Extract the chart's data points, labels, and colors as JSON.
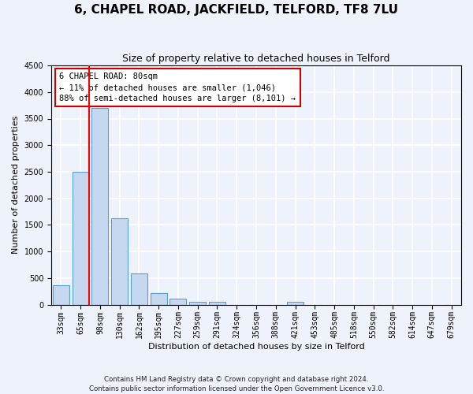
{
  "title": "6, CHAPEL ROAD, JACKFIELD, TELFORD, TF8 7LU",
  "subtitle": "Size of property relative to detached houses in Telford",
  "xlabel": "Distribution of detached houses by size in Telford",
  "ylabel": "Number of detached properties",
  "footnote": "Contains HM Land Registry data © Crown copyright and database right 2024.\nContains public sector information licensed under the Open Government Licence v3.0.",
  "categories": [
    "33sqm",
    "65sqm",
    "98sqm",
    "130sqm",
    "162sqm",
    "195sqm",
    "227sqm",
    "259sqm",
    "291sqm",
    "324sqm",
    "356sqm",
    "388sqm",
    "421sqm",
    "453sqm",
    "485sqm",
    "518sqm",
    "550sqm",
    "582sqm",
    "614sqm",
    "647sqm",
    "679sqm"
  ],
  "values": [
    360,
    2500,
    3700,
    1630,
    590,
    220,
    105,
    60,
    50,
    0,
    0,
    0,
    55,
    0,
    0,
    0,
    0,
    0,
    0,
    0,
    0
  ],
  "bar_color": "#c5d8ef",
  "bar_edge_color": "#5a9fd4",
  "ylim": [
    0,
    4500
  ],
  "yticks": [
    0,
    500,
    1000,
    1500,
    2000,
    2500,
    3000,
    3500,
    4000,
    4500
  ],
  "red_line_x": 1.45,
  "annotation_line1": "6 CHAPEL ROAD: 80sqm",
  "annotation_line2": "← 11% of detached houses are smaller (1,046)",
  "annotation_line3": "88% of semi-detached houses are larger (8,101) →",
  "annotation_box_edge_color": "#cc0000",
  "background_color": "#eef2fa",
  "grid_color": "#ffffff",
  "title_fontsize": 11,
  "subtitle_fontsize": 9,
  "axis_label_fontsize": 8,
  "tick_fontsize": 7,
  "annotation_fontsize": 7.5,
  "ylabel_fontsize": 8
}
